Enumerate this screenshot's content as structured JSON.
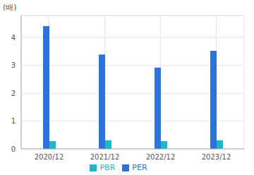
{
  "chart_data": {
    "type": "bar",
    "ylabel": "(배)",
    "categories": [
      "2020/12",
      "2021/12",
      "2022/12",
      "2023/12"
    ],
    "series": [
      {
        "name": "PER",
        "color": "#2d73dc",
        "values": [
          4.42,
          3.4,
          2.93,
          3.53
        ]
      },
      {
        "name": "PBR",
        "color": "#1bb8c9",
        "values": [
          0.28,
          0.31,
          0.28,
          0.31
        ]
      }
    ],
    "ylim": [
      0,
      4.8
    ],
    "yticks": [
      0,
      1,
      2,
      3,
      4
    ],
    "grid": true,
    "legend": "bottom"
  }
}
